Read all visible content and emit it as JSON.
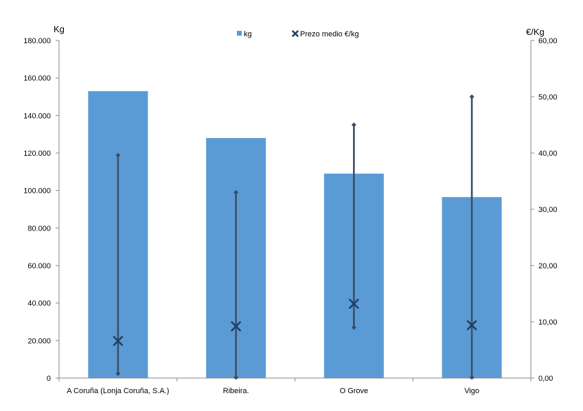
{
  "chart_data": {
    "type": "bar",
    "categories": [
      "A Coruña (Lonja Coruña, S.A.)",
      "Ribeira.",
      "O Grove",
      "Vigo"
    ],
    "series": [
      {
        "name": "kg",
        "axis": "left",
        "values": [
          153000,
          128000,
          109000,
          96500
        ],
        "color": "#5b9bd5"
      },
      {
        "name": "Prezo medio €/kg",
        "axis": "right",
        "marker": "x",
        "values": [
          6.6,
          9.2,
          13.2,
          9.4
        ],
        "min": [
          0.8,
          0.1,
          9.0,
          0.1
        ],
        "max": [
          39.6,
          33.0,
          45.0,
          50.0
        ],
        "color": "#1f3f68",
        "range_color": "#3b4f66"
      }
    ],
    "ylabel_left": "Kg",
    "ylabel_right": "€/Kg",
    "ylim_left": [
      0,
      180000
    ],
    "ylim_right": [
      0,
      60
    ],
    "yticks_left": [
      "0",
      "20.000",
      "40.000",
      "60.000",
      "80.000",
      "100.000",
      "120.000",
      "140.000",
      "160.000",
      "180.000"
    ],
    "yticks_right": [
      "0,00",
      "10,00",
      "20,00",
      "30,00",
      "40,00",
      "50,00",
      "60,00"
    ],
    "grid": false,
    "legend_position": "top-center"
  }
}
